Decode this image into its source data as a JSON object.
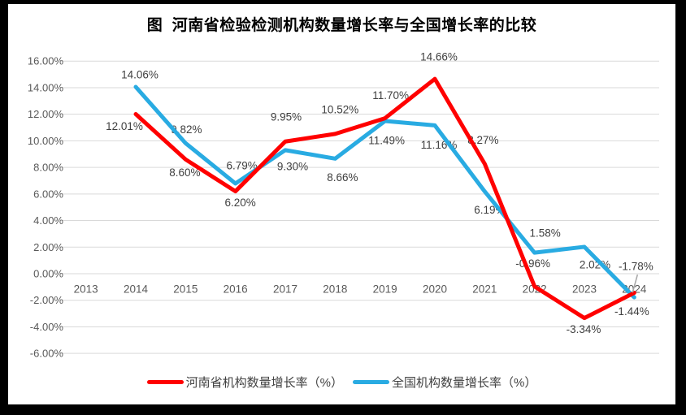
{
  "window": {
    "frame_color": "#000000",
    "canvas_color": "#FFFFFF"
  },
  "chart_data": {
    "type": "line",
    "title": "图  河南省检验检测机构数量增长率与全国增长率的比较",
    "categories": [
      "2013",
      "2014",
      "2015",
      "2016",
      "2017",
      "2018",
      "2019",
      "2020",
      "2021",
      "2022",
      "2023",
      "2024"
    ],
    "ylim": [
      -6,
      16
    ],
    "ytick_step": 2,
    "ytick_labels": [
      "16.00%",
      "14.00%",
      "12.00%",
      "10.00%",
      "8.00%",
      "6.00%",
      "4.00%",
      "2.00%",
      "0.00%",
      "-2.00%",
      "-4.00%",
      "-6.00%"
    ],
    "grid": true,
    "legend_position": "bottom",
    "series": [
      {
        "name": "河南省机构数量增长率（%）",
        "color": "#FF0000",
        "start_category": "2014",
        "values": [
          12.01,
          8.6,
          6.2,
          9.95,
          10.52,
          11.7,
          14.66,
          8.27,
          -0.96,
          -3.34,
          -1.44
        ],
        "labels": [
          "12.01%",
          "8.60%",
          "6.20%",
          "9.95%",
          "10.52%",
          "11.70%",
          "14.66%",
          "8.27%",
          "-0.96%",
          "-3.34%",
          "-1.44%"
        ]
      },
      {
        "name": "全国机构数量增长率（%）",
        "color": "#29ABE2",
        "start_category": "2014",
        "values": [
          14.06,
          9.82,
          6.79,
          9.3,
          8.66,
          11.49,
          11.16,
          6.19,
          1.58,
          2.02,
          -1.78
        ],
        "labels": [
          "14.06%",
          "9.82%",
          "6.79%",
          "9.30%",
          "8.66%",
          "11.49%",
          "11.16%",
          "6.19%",
          "1.58%",
          "2.02%",
          "-1.78%"
        ]
      }
    ],
    "colors": {
      "gridline": "#D9D9D9",
      "tick_text": "#595959",
      "label_text": "#3F3F3F",
      "leader_line": "#A6A6A6"
    }
  }
}
